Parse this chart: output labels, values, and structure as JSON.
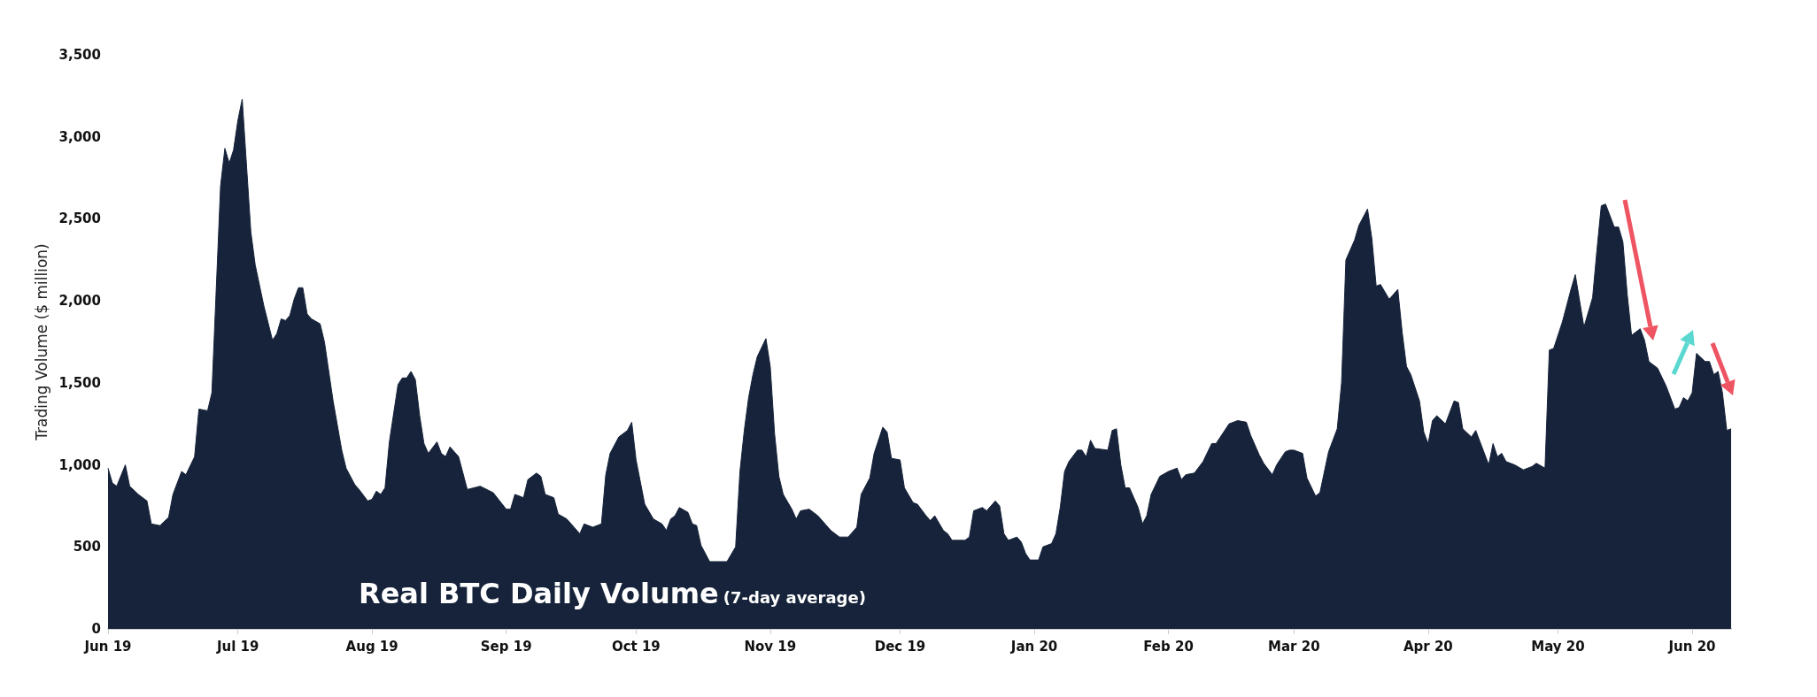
{
  "chart_data": {
    "type": "area",
    "title": "Real BTC Daily Volume",
    "subtitle": "(7-day average)",
    "ylabel": "Trading Volume ($ million)",
    "marker": "none",
    "xlim": [
      "2019-06-01",
      "2020-06-10"
    ],
    "xticks": [
      {
        "value": "2019-06-01",
        "label": "Jun 19"
      },
      {
        "value": "2019-07-01",
        "label": "Jul 19"
      },
      {
        "value": "2019-08-01",
        "label": "Aug 19"
      },
      {
        "value": "2019-09-01",
        "label": "Sep 19"
      },
      {
        "value": "2019-10-01",
        "label": "Oct 19"
      },
      {
        "value": "2019-11-01",
        "label": "Nov 19"
      },
      {
        "value": "2019-12-01",
        "label": "Dec 19"
      },
      {
        "value": "2020-01-01",
        "label": "Jan 20"
      },
      {
        "value": "2020-02-01",
        "label": "Feb 20"
      },
      {
        "value": "2020-03-01",
        "label": "Mar 20"
      },
      {
        "value": "2020-04-01",
        "label": "Apr 20"
      },
      {
        "value": "2020-05-01",
        "label": "May 20"
      },
      {
        "value": "2020-06-01",
        "label": "Jun 20"
      }
    ],
    "ylim": [
      0,
      3500
    ],
    "yticks": [
      0,
      500,
      {
        "value": 1000,
        "label": "1,000"
      },
      {
        "value": 1500,
        "label": "1,500"
      },
      {
        "value": 2000,
        "label": "2,000"
      },
      {
        "value": 2500,
        "label": "2,500"
      },
      {
        "value": 3000,
        "label": "3,000"
      },
      {
        "value": 3500,
        "label": "3,500"
      }
    ],
    "series": [
      {
        "color": "#16233a",
        "x": [
          "2019-06-01",
          "2019-06-02",
          "2019-06-03",
          "2019-06-05",
          "2019-06-06",
          "2019-06-08",
          "2019-06-10",
          "2019-06-11",
          "2019-06-13",
          "2019-06-15",
          "2019-06-16",
          "2019-06-18",
          "2019-06-19",
          "2019-06-21",
          "2019-06-22",
          "2019-06-24",
          "2019-06-25",
          "2019-06-27",
          "2019-06-28",
          "2019-06-29",
          "2019-06-30",
          "2019-07-01",
          "2019-07-02",
          "2019-07-04",
          "2019-07-05",
          "2019-07-07",
          "2019-07-09",
          "2019-07-10",
          "2019-07-11",
          "2019-07-12",
          "2019-07-13",
          "2019-07-14",
          "2019-07-15",
          "2019-07-16",
          "2019-07-17",
          "2019-07-18",
          "2019-07-20",
          "2019-07-21",
          "2019-07-23",
          "2019-07-25",
          "2019-07-26",
          "2019-07-28",
          "2019-07-29",
          "2019-07-31",
          "2019-08-01",
          "2019-08-02",
          "2019-08-03",
          "2019-08-04",
          "2019-08-05",
          "2019-08-07",
          "2019-08-08",
          "2019-08-09",
          "2019-08-10",
          "2019-08-11",
          "2019-08-12",
          "2019-08-13",
          "2019-08-14",
          "2019-08-16",
          "2019-08-17",
          "2019-08-18",
          "2019-08-19",
          "2019-08-21",
          "2019-08-23",
          "2019-08-26",
          "2019-08-29",
          "2019-09-01",
          "2019-09-02",
          "2019-09-03",
          "2019-09-05",
          "2019-09-06",
          "2019-09-08",
          "2019-09-09",
          "2019-09-10",
          "2019-09-12",
          "2019-09-13",
          "2019-09-15",
          "2019-09-18",
          "2019-09-19",
          "2019-09-21",
          "2019-09-23",
          "2019-09-24",
          "2019-09-25",
          "2019-09-27",
          "2019-09-29",
          "2019-09-30",
          "2019-10-01",
          "2019-10-03",
          "2019-10-05",
          "2019-10-07",
          "2019-10-08",
          "2019-10-09",
          "2019-10-10",
          "2019-10-11",
          "2019-10-13",
          "2019-10-14",
          "2019-10-15",
          "2019-10-16",
          "2019-10-18",
          "2019-10-22",
          "2019-10-24",
          "2019-10-25",
          "2019-10-26",
          "2019-10-27",
          "2019-10-28",
          "2019-10-29",
          "2019-10-31",
          "2019-11-01",
          "2019-11-02",
          "2019-11-03",
          "2019-11-04",
          "2019-11-06",
          "2019-11-07",
          "2019-11-08",
          "2019-11-10",
          "2019-11-12",
          "2019-11-15",
          "2019-11-17",
          "2019-11-19",
          "2019-11-21",
          "2019-11-22",
          "2019-11-24",
          "2019-11-25",
          "2019-11-27",
          "2019-11-28",
          "2019-11-29",
          "2019-12-01",
          "2019-12-02",
          "2019-12-04",
          "2019-12-05",
          "2019-12-07",
          "2019-12-08",
          "2019-12-09",
          "2019-12-11",
          "2019-12-12",
          "2019-12-13",
          "2019-12-16",
          "2019-12-17",
          "2019-12-18",
          "2019-12-20",
          "2019-12-21",
          "2019-12-23",
          "2019-12-24",
          "2019-12-25",
          "2019-12-26",
          "2019-12-28",
          "2019-12-29",
          "2019-12-30",
          "2019-12-31",
          "2020-01-02",
          "2020-01-03",
          "2020-01-05",
          "2020-01-06",
          "2020-01-07",
          "2020-01-08",
          "2020-01-09",
          "2020-01-11",
          "2020-01-12",
          "2020-01-13",
          "2020-01-14",
          "2020-01-15",
          "2020-01-18",
          "2020-01-19",
          "2020-01-20",
          "2020-01-21",
          "2020-01-22",
          "2020-01-23",
          "2020-01-25",
          "2020-01-26",
          "2020-01-27",
          "2020-01-28",
          "2020-01-30",
          "2020-02-01",
          "2020-02-03",
          "2020-02-04",
          "2020-02-05",
          "2020-02-07",
          "2020-02-09",
          "2020-02-11",
          "2020-02-12",
          "2020-02-14",
          "2020-02-15",
          "2020-02-17",
          "2020-02-19",
          "2020-02-20",
          "2020-02-22",
          "2020-02-23",
          "2020-02-25",
          "2020-02-26",
          "2020-02-28",
          "2020-02-29",
          "2020-03-01",
          "2020-03-03",
          "2020-03-04",
          "2020-03-06",
          "2020-03-07",
          "2020-03-09",
          "2020-03-11",
          "2020-03-12",
          "2020-03-13",
          "2020-03-15",
          "2020-03-16",
          "2020-03-18",
          "2020-03-19",
          "2020-03-20",
          "2020-03-21",
          "2020-03-23",
          "2020-03-25",
          "2020-03-26",
          "2020-03-27",
          "2020-03-28",
          "2020-03-30",
          "2020-03-31",
          "2020-04-01",
          "2020-04-02",
          "2020-04-03",
          "2020-04-05",
          "2020-04-07",
          "2020-04-08",
          "2020-04-09",
          "2020-04-11",
          "2020-04-12",
          "2020-04-13",
          "2020-04-15",
          "2020-04-16",
          "2020-04-17",
          "2020-04-18",
          "2020-04-19",
          "2020-04-21",
          "2020-04-23",
          "2020-04-25",
          "2020-04-26",
          "2020-04-28",
          "2020-04-29",
          "2020-04-30",
          "2020-05-02",
          "2020-05-04",
          "2020-05-05",
          "2020-05-07",
          "2020-05-09",
          "2020-05-10",
          "2020-05-11",
          "2020-05-12",
          "2020-05-14",
          "2020-05-15",
          "2020-05-16",
          "2020-05-17",
          "2020-05-18",
          "2020-05-20",
          "2020-05-21",
          "2020-05-22",
          "2020-05-24",
          "2020-05-26",
          "2020-05-28",
          "2020-05-29",
          "2020-05-30",
          "2020-05-31",
          "2020-06-01",
          "2020-06-02",
          "2020-06-04",
          "2020-06-05",
          "2020-06-06",
          "2020-06-07",
          "2020-06-08",
          "2020-06-09",
          "2020-06-10"
        ],
        "values": [
          980,
          890,
          870,
          1000,
          870,
          820,
          780,
          640,
          630,
          680,
          820,
          960,
          940,
          1050,
          1340,
          1330,
          1440,
          2700,
          2930,
          2840,
          2920,
          3100,
          3230,
          2420,
          2220,
          1970,
          1760,
          1800,
          1890,
          1880,
          1910,
          2010,
          2080,
          2080,
          1920,
          1890,
          1860,
          1750,
          1390,
          1090,
          980,
          880,
          850,
          780,
          790,
          840,
          820,
          860,
          1140,
          1490,
          1530,
          1530,
          1570,
          1520,
          1300,
          1130,
          1070,
          1140,
          1070,
          1050,
          1110,
          1050,
          850,
          870,
          830,
          730,
          730,
          820,
          800,
          910,
          950,
          930,
          820,
          800,
          700,
          670,
          580,
          640,
          620,
          640,
          940,
          1070,
          1170,
          1210,
          1260,
          1030,
          760,
          670,
          640,
          600,
          670,
          690,
          740,
          710,
          640,
          630,
          510,
          410,
          410,
          500,
          960,
          1210,
          1410,
          1550,
          1660,
          1770,
          1600,
          1190,
          930,
          820,
          730,
          670,
          720,
          730,
          690,
          600,
          560,
          560,
          620,
          820,
          920,
          1070,
          1230,
          1200,
          1040,
          1030,
          860,
          770,
          760,
          690,
          660,
          690,
          600,
          580,
          540,
          540,
          560,
          720,
          740,
          720,
          780,
          750,
          580,
          540,
          560,
          530,
          460,
          420,
          420,
          500,
          520,
          580,
          740,
          960,
          1020,
          1090,
          1090,
          1050,
          1150,
          1100,
          1090,
          1210,
          1220,
          1000,
          860,
          860,
          740,
          640,
          690,
          820,
          930,
          960,
          980,
          910,
          940,
          950,
          1020,
          1130,
          1130,
          1210,
          1250,
          1270,
          1260,
          1180,
          1060,
          1010,
          940,
          1000,
          1080,
          1090,
          1090,
          1070,
          920,
          810,
          830,
          1080,
          1220,
          1500,
          2250,
          2370,
          2460,
          2560,
          2380,
          2090,
          2100,
          2010,
          2070,
          1810,
          1600,
          1550,
          1390,
          1200,
          1130,
          1270,
          1300,
          1250,
          1390,
          1380,
          1220,
          1170,
          1210,
          1140,
          1000,
          1130,
          1050,
          1070,
          1020,
          1000,
          970,
          990,
          1010,
          980,
          1700,
          1710,
          1870,
          2070,
          2160,
          1840,
          2020,
          2310,
          2580,
          2590,
          2450,
          2450,
          2360,
          2040,
          1790,
          1830,
          1760,
          1630,
          1590,
          1480,
          1340,
          1350,
          1410,
          1390,
          1440,
          1680,
          1630,
          1630,
          1550,
          1570,
          1440,
          1210,
          1220
        ]
      }
    ]
  }
}
